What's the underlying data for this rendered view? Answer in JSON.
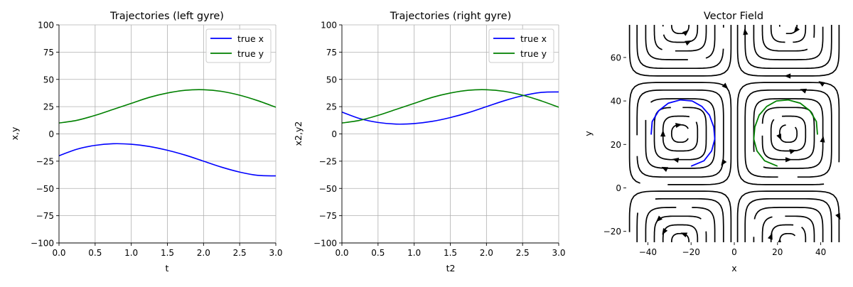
{
  "chart_data": [
    {
      "type": "line",
      "title": "Trajectories (left gyre)",
      "xlabel": "t",
      "ylabel": "x,y",
      "xlim": [
        0,
        3
      ],
      "ylim": [
        -100,
        100
      ],
      "xticks": [
        "0.0",
        "0.5",
        "1.0",
        "1.5",
        "2.0",
        "2.5",
        "3.0"
      ],
      "yticks": [
        "100",
        "75",
        "50",
        "25",
        "0",
        "−25",
        "−50",
        "−75",
        "−100"
      ],
      "grid": true,
      "legend_position": "top-right",
      "series": [
        {
          "name": "true x",
          "color": "#0000ff",
          "x": [
            0,
            0.25,
            0.5,
            0.75,
            1.0,
            1.25,
            1.5,
            1.75,
            2.0,
            2.25,
            2.5,
            2.75,
            3.0
          ],
          "values": [
            -20,
            -14,
            -10.5,
            -9,
            -9.5,
            -11.5,
            -15,
            -19.5,
            -25,
            -30.5,
            -35,
            -38,
            -38.5
          ]
        },
        {
          "name": "true y",
          "color": "#008000",
          "x": [
            0,
            0.25,
            0.5,
            0.75,
            1.0,
            1.25,
            1.5,
            1.75,
            2.0,
            2.25,
            2.5,
            2.75,
            3.0
          ],
          "values": [
            10,
            12.5,
            17,
            22.5,
            28,
            33.5,
            37.5,
            40,
            40.5,
            39,
            35.5,
            30.5,
            24.5
          ]
        }
      ]
    },
    {
      "type": "line",
      "title": "Trajectories (right gyre)",
      "xlabel": "t2",
      "ylabel": "x2,y2",
      "xlim": [
        0,
        3
      ],
      "ylim": [
        -100,
        100
      ],
      "xticks": [
        "0.0",
        "0.5",
        "1.0",
        "1.5",
        "2.0",
        "2.5",
        "3.0"
      ],
      "yticks": [
        "100",
        "75",
        "50",
        "25",
        "0",
        "−25",
        "−50",
        "−75",
        "−100"
      ],
      "grid": true,
      "legend_position": "top-right",
      "series": [
        {
          "name": "true x",
          "color": "#0000ff",
          "x": [
            0,
            0.25,
            0.5,
            0.75,
            1.0,
            1.25,
            1.5,
            1.75,
            2.0,
            2.25,
            2.5,
            2.75,
            3.0
          ],
          "values": [
            20,
            14,
            10.5,
            9,
            9.5,
            11.5,
            15,
            19.5,
            25,
            30.5,
            35,
            38,
            38.5
          ]
        },
        {
          "name": "true y",
          "color": "#008000",
          "x": [
            0,
            0.25,
            0.5,
            0.75,
            1.0,
            1.25,
            1.5,
            1.75,
            2.0,
            2.25,
            2.5,
            2.75,
            3.0
          ],
          "values": [
            10,
            12.5,
            17,
            22.5,
            28,
            33.5,
            37.5,
            40,
            40.5,
            39,
            35.5,
            30.5,
            24.5
          ]
        }
      ]
    },
    {
      "type": "streamplot",
      "title": "Vector Field",
      "xlabel": "x",
      "ylabel": "y",
      "xlim": [
        -50,
        50
      ],
      "ylim": [
        -25,
        75
      ],
      "xticks": [
        -40,
        -20,
        0,
        20,
        40
      ],
      "xtick_labels": [
        "−40",
        "−20",
        "0",
        "20",
        "40"
      ],
      "yticks": [
        -20,
        0,
        20,
        40,
        60
      ],
      "ytick_labels": [
        "−20",
        "0",
        "20",
        "40",
        "60"
      ],
      "grid": false,
      "gyres": [
        {
          "cx": -25,
          "cy": 25,
          "direction": "clockwise"
        },
        {
          "cx": 25,
          "cy": 25,
          "direction": "counterclockwise"
        },
        {
          "cx": -25,
          "cy": 75,
          "direction": "counterclockwise"
        },
        {
          "cx": 25,
          "cy": 75,
          "direction": "clockwise"
        },
        {
          "cx": -25,
          "cy": -25,
          "direction": "counterclockwise"
        },
        {
          "cx": 25,
          "cy": -25,
          "direction": "clockwise"
        }
      ],
      "trajectories": [
        {
          "color": "#0000ff",
          "x": [
            -20,
            -14,
            -10.5,
            -9,
            -9.5,
            -11.5,
            -15,
            -19.5,
            -25,
            -30.5,
            -35,
            -38,
            -38.5
          ],
          "y": [
            10,
            12.5,
            17,
            22.5,
            28,
            33.5,
            37.5,
            40,
            40.5,
            39,
            35.5,
            30.5,
            24.5
          ]
        },
        {
          "color": "#008000",
          "x": [
            20,
            14,
            10.5,
            9,
            9.5,
            11.5,
            15,
            19.5,
            25,
            30.5,
            35,
            38,
            38.5
          ],
          "y": [
            10,
            12.5,
            17,
            22.5,
            28,
            33.5,
            37.5,
            40,
            40.5,
            39,
            35.5,
            30.5,
            24.5
          ]
        }
      ]
    }
  ]
}
